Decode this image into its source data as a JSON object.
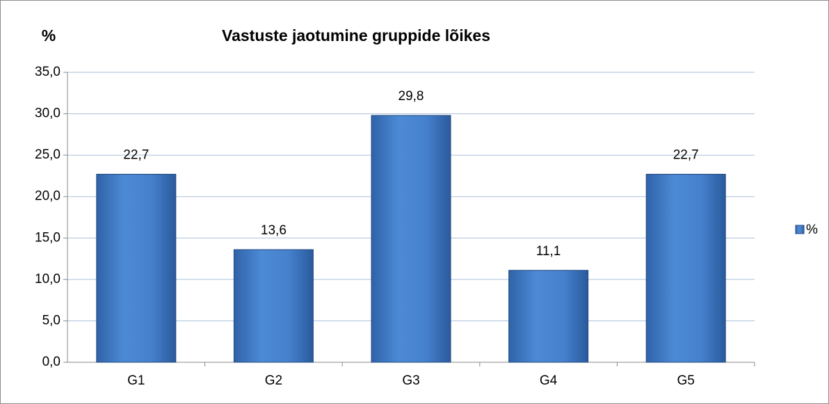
{
  "chart_data": {
    "type": "bar",
    "title": "Vastuste jaotumine gruppide lõikes",
    "y_label": "%",
    "categories": [
      "G1",
      "G2",
      "G3",
      "G4",
      "G5"
    ],
    "series": [
      {
        "name": "%",
        "color": "#4a86d0",
        "values": [
          22.7,
          13.6,
          29.8,
          11.1,
          22.7
        ],
        "value_labels": [
          "22,7",
          "13,6",
          "29,8",
          "11,1",
          "22,7"
        ]
      }
    ],
    "ylim": [
      0,
      35
    ],
    "yticks": [
      {
        "value": 0,
        "label": "0,0"
      },
      {
        "value": 5,
        "label": "5,0"
      },
      {
        "value": 10,
        "label": "10,0"
      },
      {
        "value": 15,
        "label": "15,0"
      },
      {
        "value": 20,
        "label": "20,0"
      },
      {
        "value": 25,
        "label": "25,0"
      },
      {
        "value": 30,
        "label": "30,0"
      },
      {
        "value": 35,
        "label": "35,0"
      }
    ],
    "grid": true,
    "legend": "right"
  }
}
